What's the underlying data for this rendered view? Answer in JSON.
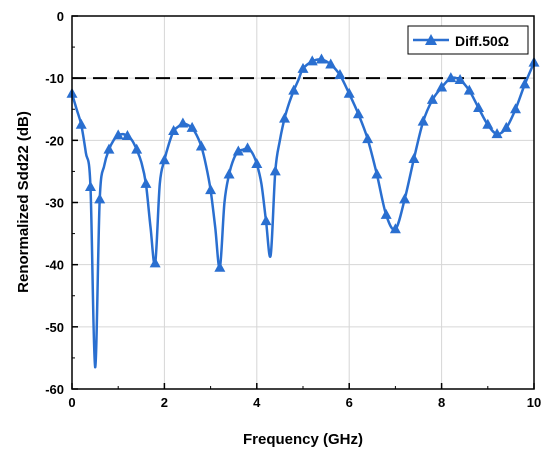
{
  "chart_data": {
    "type": "line",
    "xlabel": "Frequency (GHz)",
    "ylabel": "Renormalized Sdd22 (dB)",
    "xlim": [
      0,
      10
    ],
    "ylim": [
      -60,
      0
    ],
    "xticks": [
      0,
      2,
      4,
      6,
      8,
      10
    ],
    "yticks": [
      0,
      -10,
      -20,
      -30,
      -40,
      -50,
      -60
    ],
    "xtick_labels": [
      "0",
      "2",
      "4",
      "6",
      "8",
      "10"
    ],
    "ytick_labels": [
      "0",
      "-10",
      "-20",
      "-30",
      "-40",
      "-50",
      "-60"
    ],
    "grid": true,
    "legend_position": "top-right",
    "reference_line": {
      "y": -10,
      "style": "dashed",
      "color": "#000000"
    },
    "series": [
      {
        "name": "Diff.50Ω",
        "color": "#2a6fd0",
        "marker": "triangle",
        "x": [
          0,
          0.1,
          0.2,
          0.3,
          0.4,
          0.5,
          0.6,
          0.7,
          0.8,
          0.9,
          1.0,
          1.1,
          1.2,
          1.3,
          1.4,
          1.5,
          1.6,
          1.7,
          1.8,
          1.9,
          2.0,
          2.1,
          2.2,
          2.3,
          2.4,
          2.5,
          2.6,
          2.7,
          2.8,
          2.9,
          3.0,
          3.1,
          3.2,
          3.3,
          3.4,
          3.5,
          3.6,
          3.7,
          3.8,
          3.9,
          4.0,
          4.1,
          4.2,
          4.3,
          4.4,
          4.5,
          4.6,
          4.7,
          4.8,
          4.9,
          5.0,
          5.2,
          5.4,
          5.6,
          5.8,
          6.0,
          6.2,
          6.4,
          6.6,
          6.8,
          7.0,
          7.2,
          7.4,
          7.6,
          7.8,
          8.0,
          8.2,
          8.4,
          8.6,
          8.8,
          9.0,
          9.2,
          9.4,
          9.6,
          9.8,
          10.0
        ],
        "y": [
          -12.5,
          -15.0,
          -17.5,
          -22.0,
          -27.5,
          -56.5,
          -29.5,
          -24.0,
          -21.5,
          -20.0,
          -19.2,
          -19.0,
          -19.3,
          -20.0,
          -21.5,
          -23.5,
          -27.0,
          -34.0,
          -39.8,
          -27.0,
          -23.2,
          -20.5,
          -18.5,
          -17.8,
          -17.3,
          -17.5,
          -18.0,
          -19.2,
          -21.0,
          -24.0,
          -28.0,
          -34.0,
          -40.5,
          -30.0,
          -25.5,
          -23.0,
          -21.8,
          -21.5,
          -21.3,
          -22.0,
          -23.8,
          -27.0,
          -33.0,
          -38.5,
          -25.0,
          -20.0,
          -16.5,
          -14.0,
          -12.0,
          -10.3,
          -8.5,
          -7.3,
          -7.0,
          -7.8,
          -9.5,
          -12.5,
          -15.8,
          -19.8,
          -25.5,
          -32.0,
          -34.3,
          -29.5,
          -23.0,
          -17.0,
          -13.5,
          -11.5,
          -10.0,
          -10.3,
          -12.0,
          -14.8,
          -17.5,
          -19.0,
          -18.0,
          -15.0,
          -11.0,
          -7.5
        ],
        "markers_x": [
          0,
          0.2,
          0.4,
          0.6,
          0.8,
          1.0,
          1.2,
          1.4,
          1.6,
          1.8,
          2.0,
          2.2,
          2.4,
          2.6,
          2.8,
          3.0,
          3.2,
          3.4,
          3.6,
          3.8,
          4.0,
          4.2,
          4.4,
          4.6,
          4.8,
          5.0,
          5.2,
          5.4,
          5.6,
          5.8,
          6.0,
          6.2,
          6.4,
          6.6,
          6.8,
          7.0,
          7.2,
          7.4,
          7.6,
          7.8,
          8.0,
          8.2,
          8.4,
          8.6,
          8.8,
          9.0,
          9.2,
          9.4,
          9.6,
          9.8,
          10.0
        ]
      }
    ]
  }
}
